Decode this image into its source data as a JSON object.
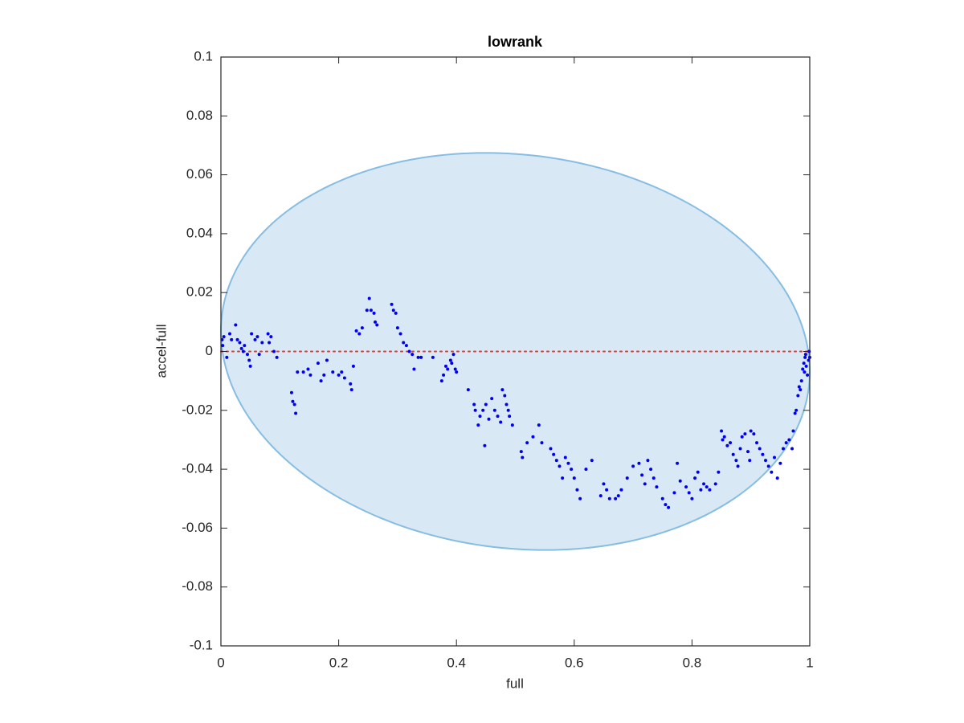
{
  "chart_data": {
    "type": "scatter",
    "title": "lowrank",
    "x_label": "full",
    "y_label": "accel-full",
    "xlim": [
      0,
      1
    ],
    "ylim": [
      -0.1,
      0.1
    ],
    "xticks": [
      0,
      0.2,
      0.4,
      0.6,
      0.8,
      1
    ],
    "yticks": [
      -0.1,
      -0.08,
      -0.06,
      -0.04,
      -0.02,
      0,
      0.02,
      0.04,
      0.06,
      0.08,
      0.1
    ],
    "ellipse": {
      "cx": 0.5,
      "cy": 0,
      "rx": 0.5,
      "ry": 0.0671,
      "shear": 0.0068,
      "fill": "#d8e8f4",
      "stroke": "#86bde2"
    },
    "reference_line": {
      "y": 0,
      "color": "#e8372e"
    },
    "series": [
      {
        "color": "#0000f0",
        "x": [
          0.002,
          0.005,
          0.003,
          0.01,
          0.015,
          0.018,
          0.025,
          0.028,
          0.032,
          0.035,
          0.038,
          0.04,
          0.045,
          0.048,
          0.05,
          0.052,
          0.058,
          0.062,
          0.065,
          0.07,
          0.08,
          0.082,
          0.085,
          0.09,
          0.095,
          0.12,
          0.122,
          0.125,
          0.127,
          0.13,
          0.14,
          0.148,
          0.152,
          0.165,
          0.17,
          0.175,
          0.18,
          0.19,
          0.2,
          0.205,
          0.21,
          0.22,
          0.222,
          0.225,
          0.23,
          0.235,
          0.24,
          0.248,
          0.252,
          0.255,
          0.26,
          0.262,
          0.265,
          0.29,
          0.293,
          0.297,
          0.3,
          0.305,
          0.31,
          0.315,
          0.32,
          0.325,
          0.328,
          0.335,
          0.34,
          0.36,
          0.375,
          0.378,
          0.382,
          0.385,
          0.39,
          0.392,
          0.395,
          0.398,
          0.4,
          0.42,
          0.43,
          0.432,
          0.437,
          0.44,
          0.445,
          0.45,
          0.448,
          0.455,
          0.46,
          0.465,
          0.47,
          0.475,
          0.478,
          0.482,
          0.485,
          0.488,
          0.49,
          0.495,
          0.51,
          0.512,
          0.52,
          0.53,
          0.54,
          0.545,
          0.56,
          0.565,
          0.57,
          0.575,
          0.58,
          0.585,
          0.59,
          0.595,
          0.6,
          0.605,
          0.61,
          0.62,
          0.63,
          0.645,
          0.65,
          0.655,
          0.66,
          0.67,
          0.675,
          0.68,
          0.69,
          0.7,
          0.71,
          0.715,
          0.72,
          0.725,
          0.73,
          0.735,
          0.74,
          0.75,
          0.755,
          0.76,
          0.77,
          0.775,
          0.78,
          0.79,
          0.795,
          0.8,
          0.805,
          0.81,
          0.815,
          0.82,
          0.825,
          0.83,
          0.84,
          0.845,
          0.85,
          0.852,
          0.855,
          0.86,
          0.865,
          0.87,
          0.875,
          0.878,
          0.882,
          0.885,
          0.89,
          0.895,
          0.898,
          0.9,
          0.905,
          0.91,
          0.915,
          0.92,
          0.925,
          0.93,
          0.935,
          0.94,
          0.945,
          0.95,
          0.955,
          0.96,
          0.965,
          0.97,
          0.972,
          0.975,
          0.977,
          0.98,
          0.982,
          0.984,
          0.986,
          0.988,
          0.99,
          0.992,
          0.994,
          0.996,
          0.998,
          0.999,
          1.0,
          0.991,
          0.993
        ],
        "values": [
          0.004,
          0.005,
          0.002,
          -0.002,
          0.006,
          0.004,
          0.009,
          0.004,
          0.003,
          0.001,
          0.0,
          0.002,
          -0.001,
          -0.003,
          -0.005,
          0.006,
          0.004,
          0.005,
          -0.001,
          0.003,
          0.006,
          0.003,
          0.005,
          0.0,
          -0.002,
          -0.014,
          -0.017,
          -0.018,
          -0.021,
          -0.007,
          -0.007,
          -0.006,
          -0.008,
          -0.004,
          -0.01,
          -0.008,
          -0.003,
          -0.007,
          -0.008,
          -0.007,
          -0.009,
          -0.011,
          -0.013,
          -0.005,
          0.007,
          0.006,
          0.008,
          0.014,
          0.018,
          0.014,
          0.013,
          0.01,
          0.009,
          0.016,
          0.014,
          0.013,
          0.008,
          0.006,
          0.003,
          0.002,
          0.0,
          -0.001,
          -0.006,
          -0.002,
          -0.002,
          -0.002,
          -0.01,
          -0.008,
          -0.005,
          -0.006,
          -0.003,
          -0.004,
          -0.001,
          -0.006,
          -0.007,
          -0.013,
          -0.018,
          -0.02,
          -0.025,
          -0.022,
          -0.02,
          -0.018,
          -0.032,
          -0.023,
          -0.016,
          -0.02,
          -0.022,
          -0.024,
          -0.013,
          -0.015,
          -0.018,
          -0.02,
          -0.022,
          -0.025,
          -0.034,
          -0.036,
          -0.031,
          -0.029,
          -0.025,
          -0.031,
          -0.033,
          -0.035,
          -0.037,
          -0.039,
          -0.043,
          -0.036,
          -0.038,
          -0.04,
          -0.043,
          -0.047,
          -0.05,
          -0.04,
          -0.037,
          -0.049,
          -0.045,
          -0.047,
          -0.05,
          -0.05,
          -0.049,
          -0.047,
          -0.043,
          -0.039,
          -0.038,
          -0.042,
          -0.045,
          -0.037,
          -0.04,
          -0.043,
          -0.046,
          -0.05,
          -0.052,
          -0.053,
          -0.048,
          -0.038,
          -0.044,
          -0.046,
          -0.048,
          -0.05,
          -0.043,
          -0.041,
          -0.047,
          -0.045,
          -0.046,
          -0.047,
          -0.045,
          -0.041,
          -0.027,
          -0.03,
          -0.029,
          -0.032,
          -0.031,
          -0.035,
          -0.037,
          -0.039,
          -0.033,
          -0.029,
          -0.028,
          -0.034,
          -0.037,
          -0.027,
          -0.028,
          -0.031,
          -0.033,
          -0.035,
          -0.037,
          -0.039,
          -0.041,
          -0.036,
          -0.043,
          -0.038,
          -0.033,
          -0.031,
          -0.03,
          -0.033,
          -0.027,
          -0.021,
          -0.02,
          -0.015,
          -0.012,
          -0.013,
          -0.01,
          -0.006,
          -0.004,
          -0.002,
          -0.005,
          -0.008,
          -0.003,
          0.0,
          -0.002,
          -0.007,
          -0.001
        ]
      }
    ]
  }
}
